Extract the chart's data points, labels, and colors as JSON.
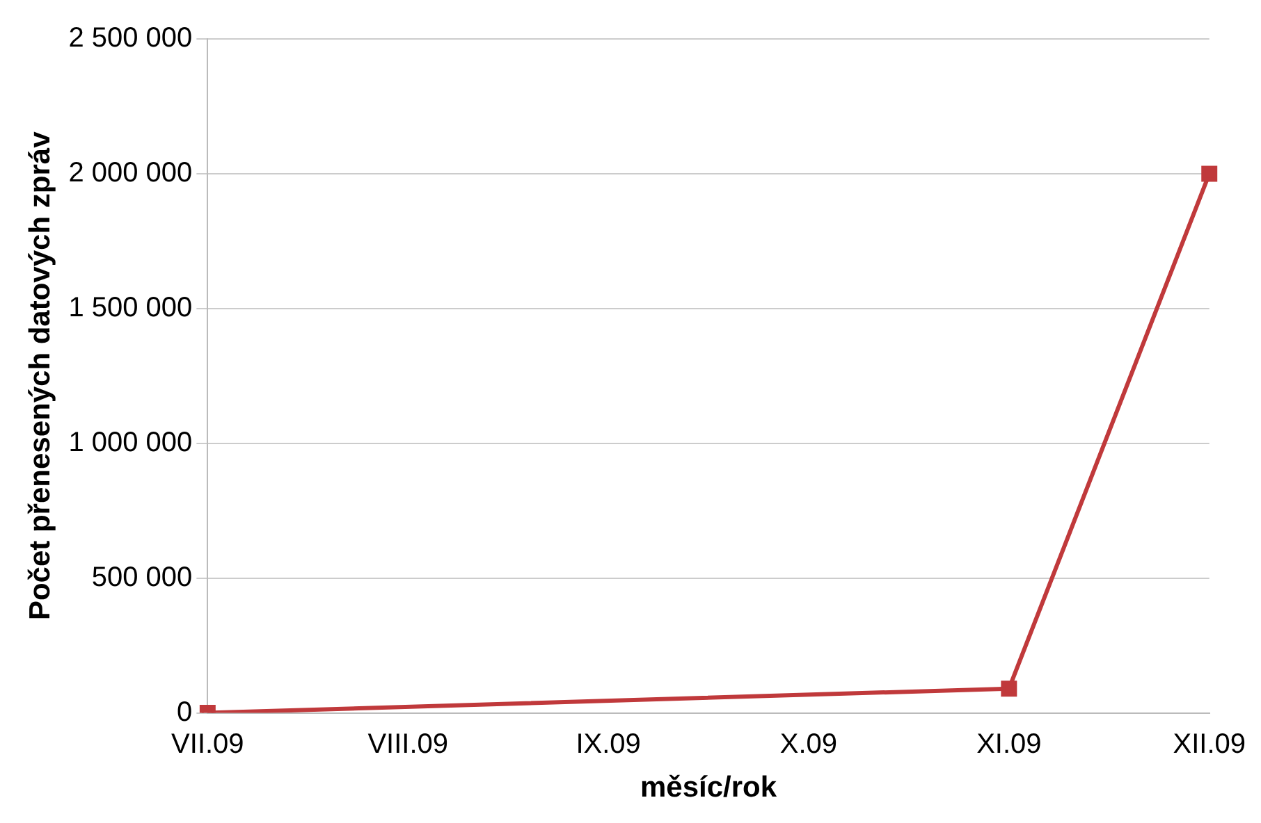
{
  "chart_data": {
    "type": "line",
    "xlabel": "měsíc/rok",
    "ylabel": "Počet přenesených datových zpráv",
    "categories": [
      "VII.09",
      "VIII.09",
      "IX.09",
      "X.09",
      "XI.09",
      "XII.09"
    ],
    "series": [
      {
        "color": "#c0393b",
        "values": [
          0,
          null,
          null,
          null,
          90000,
          2000000
        ]
      }
    ],
    "ylim": [
      0,
      2500000
    ],
    "yticks": [
      {
        "value": 0,
        "label": "0"
      },
      {
        "value": 500000,
        "label": "500 000"
      },
      {
        "value": 1000000,
        "label": "1 000 000"
      },
      {
        "value": 1500000,
        "label": "1 500 000"
      },
      {
        "value": 2000000,
        "label": "2 000 000"
      },
      {
        "value": 2500000,
        "label": "2 500 000"
      }
    ],
    "grid": "y",
    "marker": "square",
    "line_style": "solid",
    "legend": false
  }
}
